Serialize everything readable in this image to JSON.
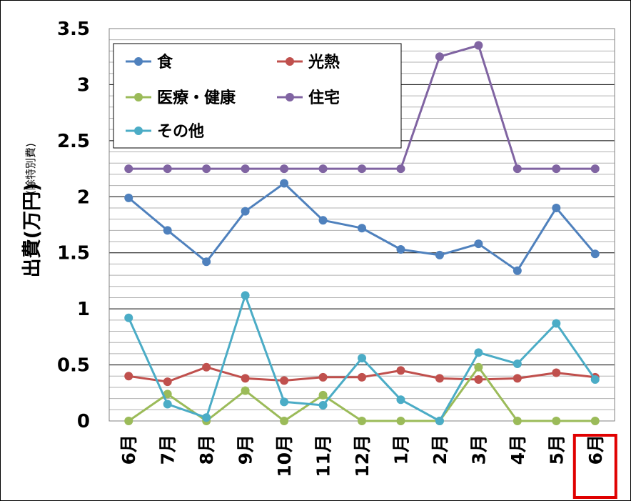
{
  "chart_data": {
    "type": "line",
    "ylabel": "出費(万円)",
    "ylabel_note": "(除特別費)",
    "ylim": [
      0,
      3.5
    ],
    "y_ticks": [
      "0",
      "0.5",
      "1",
      "1.5",
      "2",
      "2.5",
      "3",
      "3.5"
    ],
    "grid": true,
    "legend_position": "top-left",
    "categories": [
      "6月",
      "7月",
      "8月",
      "9月",
      "10月",
      "11月",
      "12月",
      "1月",
      "2月",
      "3月",
      "4月",
      "5月",
      "6月"
    ],
    "highlight_category_index": 12,
    "highlight_color": "#e00000",
    "series": [
      {
        "name": "食",
        "color": "#4f81bd",
        "values": [
          1.99,
          1.7,
          1.42,
          1.87,
          2.12,
          1.79,
          1.72,
          1.53,
          1.48,
          1.58,
          1.34,
          1.9,
          1.49
        ]
      },
      {
        "name": "光熱",
        "color": "#c0504d",
        "values": [
          0.4,
          0.35,
          0.48,
          0.38,
          0.36,
          0.39,
          0.39,
          0.45,
          0.38,
          0.37,
          0.38,
          0.43,
          0.39
        ]
      },
      {
        "name": "医療・健康",
        "color": "#9bbb59",
        "values": [
          0.0,
          0.24,
          0.0,
          0.27,
          0.0,
          0.23,
          0.0,
          0.0,
          0.0,
          0.48,
          0.0,
          0.0,
          0.0
        ]
      },
      {
        "name": "住宅",
        "color": "#8064a2",
        "values": [
          2.25,
          2.25,
          2.25,
          2.25,
          2.25,
          2.25,
          2.25,
          2.25,
          3.25,
          3.35,
          2.25,
          2.25,
          2.25
        ]
      },
      {
        "name": "その他",
        "color": "#4bacc6",
        "values": [
          0.92,
          0.15,
          0.03,
          1.12,
          0.17,
          0.14,
          0.56,
          0.19,
          0.0,
          0.61,
          0.51,
          0.87,
          0.37
        ]
      }
    ]
  }
}
